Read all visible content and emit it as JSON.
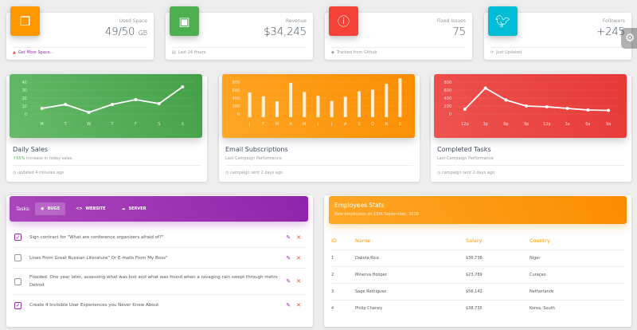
{
  "stats": [
    {
      "category": "Used Space",
      "value": "49/50",
      "unit": "GB",
      "footer": "Get More Space...",
      "icon": "content-copy-icon",
      "color": "#ff9800"
    },
    {
      "category": "Revenue",
      "value": "$34,245",
      "footer": "Last 24 Hours",
      "icon": "store-icon",
      "color": "#4caf50"
    },
    {
      "category": "Fixed Issues",
      "value": "75",
      "footer": "Tracked from Github",
      "icon": "info-outline-icon",
      "color": "#f44336"
    },
    {
      "category": "Followers",
      "value": "+245",
      "footer": "Just Updated",
      "icon": "twitter-icon",
      "color": "#00bcd4"
    }
  ],
  "chart_data": [
    {
      "type": "line",
      "title": "Daily Sales",
      "categories": [
        "M",
        "T",
        "W",
        "T",
        "F",
        "S",
        "S"
      ],
      "values": [
        7,
        12,
        2,
        12,
        18,
        13,
        34
      ],
      "ylim": [
        0,
        40
      ],
      "yticks": [
        0,
        10,
        20,
        30,
        40
      ],
      "color": "#4caf50",
      "grid": true
    },
    {
      "type": "bar",
      "title": "Email Subscriptions",
      "categories": [
        "J",
        "F",
        "M",
        "A",
        "M",
        "J",
        "J",
        "A",
        "S",
        "O",
        "N",
        "D"
      ],
      "values": [
        542,
        443,
        320,
        780,
        553,
        453,
        326,
        434,
        568,
        610,
        756,
        895
      ],
      "ylim": [
        0,
        800
      ],
      "yticks": [
        0,
        200,
        400,
        600,
        800
      ],
      "color": "#ff9800",
      "grid": true
    },
    {
      "type": "line",
      "title": "Completed Tasks",
      "categories": [
        "12p",
        "3p",
        "6p",
        "9p",
        "12p",
        "3a",
        "6a",
        "9a"
      ],
      "values": [
        120,
        650,
        350,
        200,
        180,
        140,
        100,
        90
      ],
      "ylim": [
        0,
        800
      ],
      "yticks": [
        0,
        200,
        400,
        600,
        800
      ],
      "color": "#f44336",
      "grid": true
    }
  ],
  "charts": [
    {
      "title": "Daily Sales",
      "subtitle_pct": "55%",
      "subtitle": " increase in today sales.",
      "footer": "updated 4 minutes ago"
    },
    {
      "title": "Email Subscriptions",
      "subtitle": "Last Campaign Performance",
      "footer": "campaign sent 2 days ago"
    },
    {
      "title": "Completed Tasks",
      "subtitle": "Last Campaign Performance",
      "footer": "campaign sent 2 days ago"
    }
  ],
  "tasks": {
    "label": "Tasks:",
    "tabs": [
      "BUGS",
      "WEBSITE",
      "SERVER"
    ],
    "items": [
      {
        "text": "Sign contract for \"What are conference organizers afraid of?\"",
        "checked": true
      },
      {
        "text": "Lines From Great Russian Literature\" Or E-mails From My Boss\"",
        "checked": false
      },
      {
        "text": "Flooded: One year later, assessing what was lost and what was found when a ravaging rain swept through metro Detroit",
        "checked": false
      },
      {
        "text": "Create 4 Invisible User Experiences you Never Knew About",
        "checked": true
      }
    ]
  },
  "employees": {
    "title": "Employees Stats",
    "subtitle": "New employees on 15th September, 2016",
    "columns": [
      "ID",
      "Name",
      "Salary",
      "Country"
    ],
    "rows": [
      [
        "1",
        "Dakota Rice",
        "$36,738",
        "Niger"
      ],
      [
        "2",
        "Minerva Hooper",
        "$23,789",
        "Curaçao"
      ],
      [
        "3",
        "Sage Rodriguez",
        "$56,142",
        "Netherlands"
      ],
      [
        "4",
        "Philip Chaney",
        "$38,735",
        "Korea, South"
      ]
    ]
  }
}
